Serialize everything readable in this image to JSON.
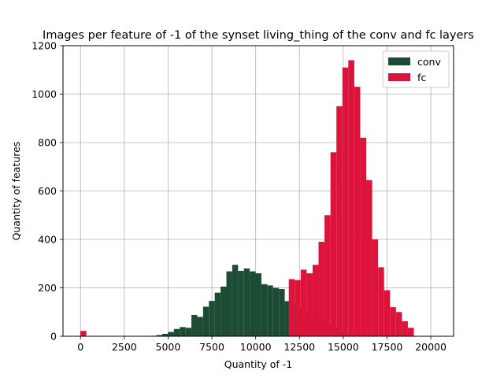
{
  "chart_data": {
    "type": "histogram",
    "title": "Images per feature of -1 of the synset living_thing of the conv and fc layers",
    "xlabel": "Quantity of -1",
    "ylabel": "Quantity of features",
    "xlim": [
      -1000,
      21300
    ],
    "ylim": [
      0,
      1200
    ],
    "x_ticks": [
      0,
      2500,
      5000,
      7500,
      10000,
      12500,
      15000,
      17500,
      20000
    ],
    "y_ticks": [
      0,
      200,
      400,
      600,
      800,
      1000,
      1200
    ],
    "grid": true,
    "legend_position": "top-right",
    "series": [
      {
        "name": "conv",
        "color": "#1c4c33",
        "bin_start": 4000,
        "bin_width": 333,
        "values": [
          2,
          5,
          10,
          18,
          30,
          38,
          35,
          88,
          80,
          122,
          146,
          180,
          205,
          268,
          295,
          270,
          280,
          268,
          260,
          215,
          210,
          200,
          195,
          145,
          130,
          118,
          100,
          80,
          70,
          55,
          48,
          32,
          20,
          14,
          8,
          5,
          3,
          2,
          1
        ]
      },
      {
        "name": "fc",
        "color": "#dc143c",
        "bin_start": -10,
        "bin_width": 340,
        "values": [
          22,
          0,
          0,
          0,
          0,
          0,
          0,
          0,
          0,
          0,
          0,
          0,
          0,
          0,
          0,
          0,
          0,
          0,
          0,
          0,
          0,
          0,
          0,
          0,
          0,
          0,
          0,
          0,
          0,
          0,
          0,
          0,
          0,
          0,
          0,
          236,
          232,
          275,
          260,
          295,
          390,
          500,
          760,
          950,
          1110,
          1140,
          1030,
          820,
          645,
          400,
          285,
          190,
          120,
          100,
          62,
          35
        ]
      }
    ]
  }
}
